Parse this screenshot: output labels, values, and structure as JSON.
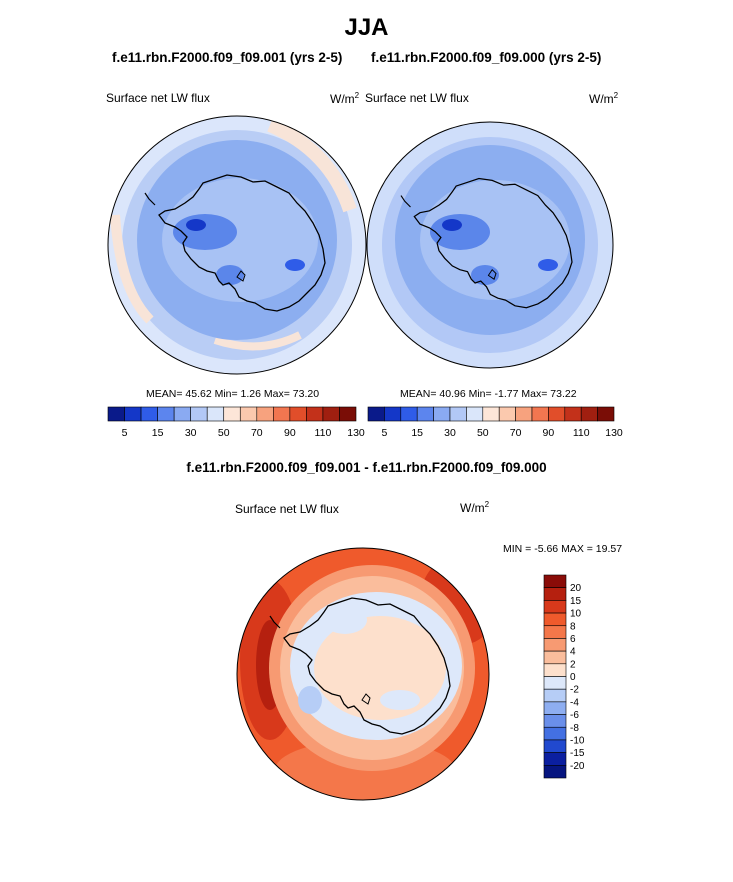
{
  "title": "JJA",
  "panels": [
    {
      "case_title": "f.e11.rbn.F2000.f09_f09.001 (yrs 2-5)",
      "variable": "Surface net LW flux",
      "units": "W/m",
      "units_exp": "2",
      "stats": "MEAN=  45.62  Min=   1.26  Max=  73.20"
    },
    {
      "case_title": "f.e11.rbn.F2000.f09_f09.000 (yrs 2-5)",
      "variable": "Surface net LW flux",
      "units": "W/m",
      "units_exp": "2",
      "stats": "MEAN=  40.96  Min=  -1.77  Max=  73.22"
    }
  ],
  "horizontal_colorbar": {
    "labels": [
      "5",
      "15",
      "30",
      "50",
      "70",
      "90",
      "110",
      "130"
    ],
    "colors": [
      "#0a1a8a",
      "#1437c8",
      "#2f5ce8",
      "#5c85ee",
      "#8aaaf2",
      "#b2c8f6",
      "#dae6fa",
      "#fde6d8",
      "#fbc9ae",
      "#f7a27e",
      "#f27650",
      "#e14e2a",
      "#c3311a",
      "#a01f10",
      "#7a0d06"
    ]
  },
  "difference": {
    "title": "f.e11.rbn.F2000.f09_f09.001 - f.e11.rbn.F2000.f09_f09.000",
    "variable": "Surface net LW flux",
    "units": "W/m",
    "units_exp": "2",
    "minmax": "MIN =  -5.66 MAX =  19.57"
  },
  "vertical_colorbar": {
    "labels": [
      "20",
      "15",
      "10",
      "8",
      "6",
      "4",
      "2",
      "0",
      "-2",
      "-4",
      "-6",
      "-8",
      "-10",
      "-15",
      "-20"
    ],
    "colors": [
      "#8a0c08",
      "#b5200f",
      "#d8391b",
      "#ef5a2c",
      "#f4774a",
      "#f79a72",
      "#fabd9c",
      "#fde0cc",
      "#dde8fa",
      "#b6cdf6",
      "#8eaef1",
      "#6a8fea",
      "#4370e2",
      "#2149cf",
      "#0b1fa0",
      "#061580"
    ]
  }
}
